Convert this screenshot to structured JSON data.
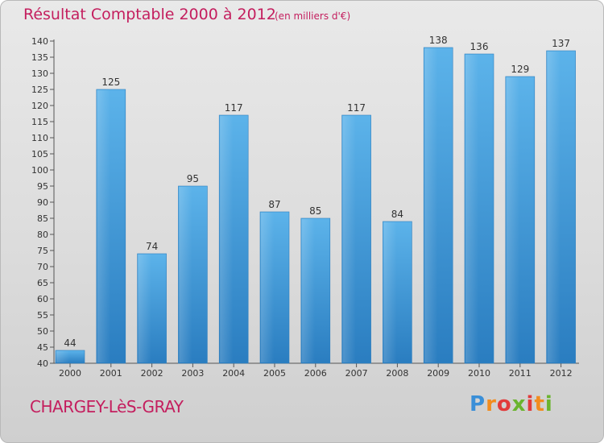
{
  "title": "Résultat Comptable 2000 à 2012",
  "subtitle": "(en milliers d'€)",
  "city": "CHARGEY-LèS-GRAY",
  "logo": {
    "text": "Proxiti",
    "colors": [
      "#3a8fd8",
      "#f28c1e",
      "#e23b3b",
      "#6ab42e"
    ]
  },
  "chart_data": {
    "type": "bar",
    "title": "Résultat Comptable 2000 à 2012",
    "subtitle": "(en milliers d'€)",
    "xlabel": "",
    "ylabel": "",
    "categories": [
      "2000",
      "2001",
      "2002",
      "2003",
      "2004",
      "2005",
      "2006",
      "2007",
      "2008",
      "2009",
      "2010",
      "2011",
      "2012"
    ],
    "values": [
      44,
      125,
      74,
      95,
      117,
      87,
      85,
      117,
      84,
      138,
      136,
      129,
      137
    ],
    "ylim": [
      40,
      140
    ],
    "yticks": [
      40,
      45,
      50,
      55,
      60,
      65,
      70,
      75,
      80,
      85,
      90,
      95,
      100,
      105,
      110,
      115,
      120,
      125,
      130,
      135,
      140
    ],
    "grid": false,
    "bar_color": "#3f9ee0"
  }
}
